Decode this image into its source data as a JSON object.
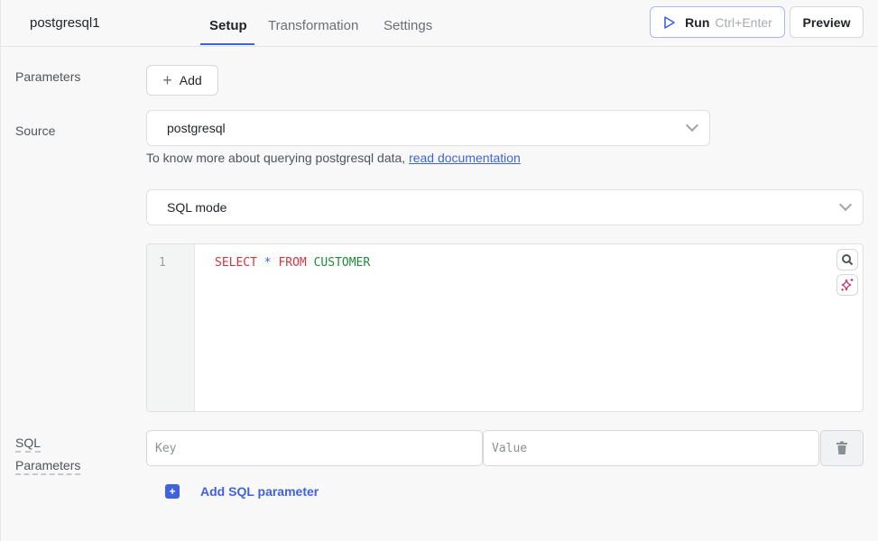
{
  "header": {
    "query_name": "postgresql1",
    "tabs": [
      {
        "label": "Setup",
        "active": true
      },
      {
        "label": "Transformation"
      },
      {
        "label": "Settings"
      }
    ],
    "run_label": "Run",
    "run_shortcut": "Ctrl+Enter",
    "preview_label": "Preview"
  },
  "parameters": {
    "label": "Parameters",
    "add_label": "Add"
  },
  "source": {
    "label": "Source",
    "value": "postgresql",
    "hint_text": "To know more about querying postgresql data, ",
    "hint_link": "read documentation"
  },
  "mode": {
    "value": "SQL mode"
  },
  "editor": {
    "line_numbers": [
      "1"
    ],
    "tokens": {
      "select": "SELECT",
      "star": "*",
      "from": "FROM",
      "table": "CUSTOMER"
    }
  },
  "sql_parameters": {
    "label_line1": "SQL",
    "label_line2": "Parameters",
    "key_placeholder": "Key",
    "value_placeholder": "Value",
    "add_label": "Add SQL parameter"
  },
  "colors": {
    "accent": "#3e63dd",
    "keyword": "#d6333f",
    "identifier": "#1f8a3b"
  }
}
